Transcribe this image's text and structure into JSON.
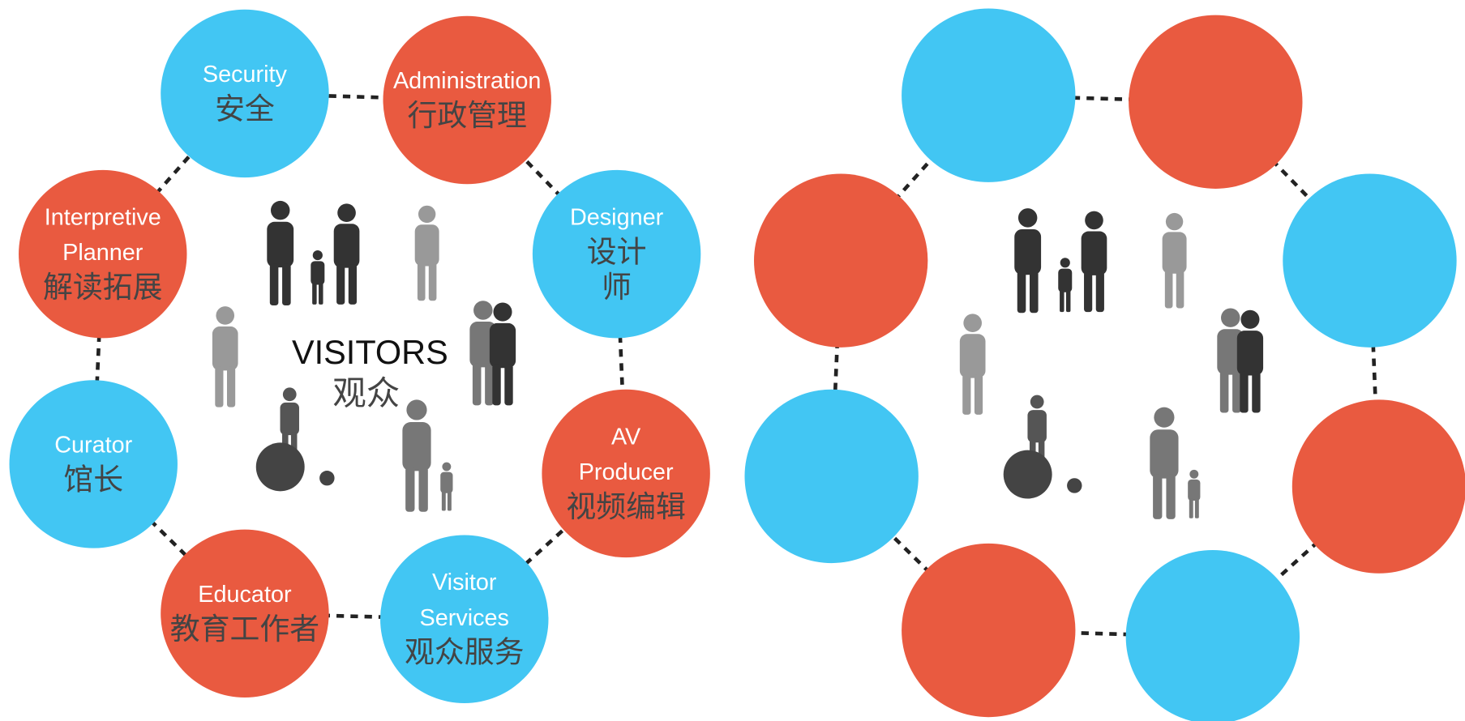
{
  "left_diagram": {
    "center": {
      "en": "VISITORS",
      "zh": "观众"
    },
    "nodes": [
      {
        "en": [
          "Security"
        ],
        "zh": [
          "安全"
        ],
        "color": "#42c6f3"
      },
      {
        "en": [
          "Administration"
        ],
        "zh": [
          "行政管理"
        ],
        "color": "#e95a40"
      },
      {
        "en": [
          "Designer"
        ],
        "zh": [
          "设计",
          "师"
        ],
        "color": "#42c6f3"
      },
      {
        "en": [
          "AV",
          "Producer"
        ],
        "zh": [
          "视频编辑"
        ],
        "color": "#e95a40"
      },
      {
        "en": [
          "Visitor",
          "Services"
        ],
        "zh": [
          "观众服务"
        ],
        "color": "#42c6f3"
      },
      {
        "en": [
          "Educator"
        ],
        "zh": [
          "教育工作者"
        ],
        "color": "#e95a40"
      },
      {
        "en": [
          "Curator"
        ],
        "zh": [
          "馆长"
        ],
        "color": "#42c6f3"
      },
      {
        "en": [
          "Interpretive",
          "Planner"
        ],
        "zh": [
          "解读拓展"
        ],
        "color": "#e95a40"
      }
    ]
  },
  "right_diagram": {
    "nodes": [
      {
        "color": "#42c6f3"
      },
      {
        "color": "#e95a40"
      },
      {
        "color": "#42c6f3"
      },
      {
        "color": "#e95a40"
      },
      {
        "color": "#42c6f3"
      },
      {
        "color": "#e95a40"
      },
      {
        "color": "#42c6f3"
      },
      {
        "color": "#e95a40"
      }
    ]
  }
}
